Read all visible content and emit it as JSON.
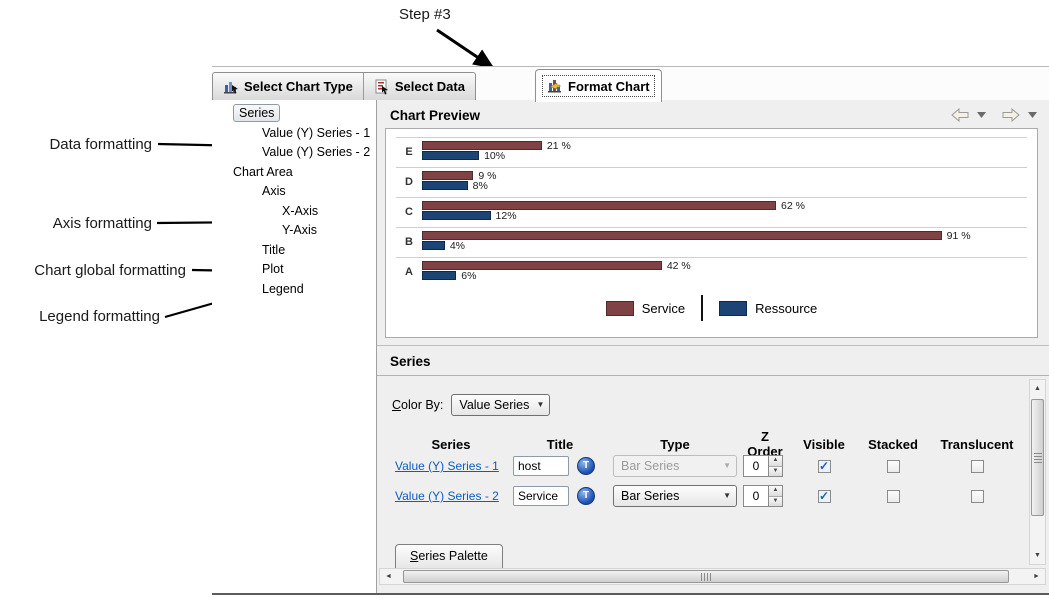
{
  "annotations": {
    "step_label": "Step #3",
    "data_formatting": "Data formatting",
    "axis_formatting": "Axis formatting",
    "chart_global_formatting": "Chart global formatting",
    "legend_formatting": "Legend formatting"
  },
  "tabs": [
    {
      "label": "Select Chart Type",
      "icon": "chart-type-icon",
      "selected": false
    },
    {
      "label": "Select Data",
      "icon": "select-data-icon",
      "selected": false
    },
    {
      "label": "Format Chart",
      "icon": "format-chart-icon",
      "selected": true
    }
  ],
  "tree": {
    "items": [
      {
        "label": "Series",
        "level": 0,
        "selected": true
      },
      {
        "label": "Value (Y) Series - 1",
        "level": 1,
        "selected": false
      },
      {
        "label": "Value (Y) Series - 2",
        "level": 1,
        "selected": false
      },
      {
        "label": "Chart Area",
        "level": 0,
        "selected": false
      },
      {
        "label": "Axis",
        "level": 1,
        "selected": false
      },
      {
        "label": "X-Axis",
        "level": 2,
        "selected": false
      },
      {
        "label": "Y-Axis",
        "level": 2,
        "selected": false
      },
      {
        "label": "Title",
        "level": 1,
        "selected": false
      },
      {
        "label": "Plot",
        "level": 1,
        "selected": false
      },
      {
        "label": "Legend",
        "level": 1,
        "selected": false
      }
    ]
  },
  "preview": {
    "title": "Chart Preview"
  },
  "chart_data": {
    "type": "bar",
    "orientation": "horizontal",
    "categories": [
      "E",
      "D",
      "C",
      "B",
      "A"
    ],
    "series": [
      {
        "name": "Service",
        "color": "#7f4345",
        "border": "#502b2c",
        "values": [
          21,
          9,
          62,
          91,
          42
        ],
        "labels": [
          "21 %",
          "9 %",
          "62 %",
          "91 %",
          "42 %"
        ]
      },
      {
        "name": "Ressource",
        "color": "#1c4475",
        "border": "#0d2a4e",
        "values": [
          10,
          8,
          12,
          4,
          6
        ],
        "labels": [
          "10%",
          "8%",
          "12%",
          "4%",
          "6%"
        ]
      }
    ],
    "xlim": [
      0,
      100
    ],
    "gridlines": true,
    "value_labels_shown": true,
    "legend_position": "bottom"
  },
  "series_panel": {
    "title": "Series",
    "color_by_label": "Color By:",
    "color_by_value": "Value Series",
    "columns": [
      "Series",
      "Title",
      "Type",
      "Z Order",
      "Visible",
      "Stacked",
      "Translucent"
    ],
    "rows": [
      {
        "series": "Value (Y) Series - 1",
        "title": "host",
        "type": "Bar Series",
        "type_enabled": false,
        "z_order": "0",
        "visible": true,
        "stacked": false,
        "translucent": false
      },
      {
        "series": "Value (Y) Series - 2",
        "title": "Service",
        "type": "Bar Series",
        "type_enabled": true,
        "z_order": "0",
        "visible": true,
        "stacked": false,
        "translucent": false
      }
    ],
    "palette_tab": "Series Palette"
  },
  "icons": [
    "chart-type-icon",
    "select-data-icon",
    "format-chart-icon",
    "back-arrow-icon",
    "forward-arrow-icon",
    "dropdown-arrow-icon",
    "text-globe-icon",
    "spinner-up-icon",
    "spinner-down-icon",
    "scroll-left-icon",
    "scroll-right-icon",
    "scroll-up-icon",
    "scroll-down-icon",
    "checkmark-icon"
  ],
  "colors": {
    "link": "#0b5cc4",
    "bar_service": "#7f4345",
    "bar_ressource": "#1c4475",
    "panel_bg": "#efefef",
    "annotation_arrow": "#000000"
  }
}
